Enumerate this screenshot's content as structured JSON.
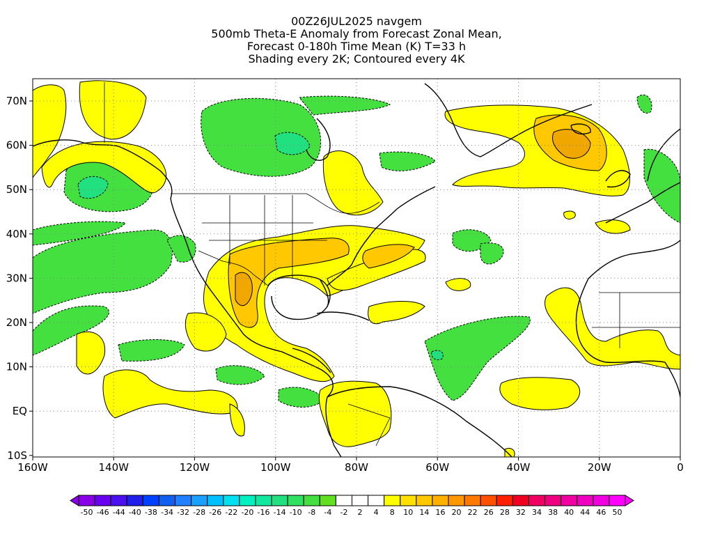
{
  "title": {
    "line1": "00Z26JUL2025 navgem",
    "line2": "500mb Theta-E Anomaly from Forecast Zonal Mean,",
    "line3": "Forecast 0-180h Time Mean (K) T=33 h",
    "line4": "Shading every 2K; Contoured every 4K"
  },
  "axes": {
    "lon_labels": [
      "160W",
      "140W",
      "120W",
      "100W",
      "80W",
      "60W",
      "40W",
      "20W",
      "0"
    ],
    "lat_labels": [
      "70N",
      "60N",
      "50N",
      "40N",
      "30N",
      "20N",
      "10N",
      "EQ",
      "10S"
    ]
  },
  "colorbar": {
    "labels": [
      "-50",
      "-46",
      "-44",
      "-40",
      "-38",
      "-34",
      "-32",
      "-28",
      "-26",
      "-22",
      "-20",
      "-16",
      "-14",
      "-10",
      "-8",
      "-4",
      "-2",
      "2",
      "4",
      "8",
      "10",
      "14",
      "16",
      "20",
      "22",
      "26",
      "28",
      "32",
      "34",
      "38",
      "40",
      "44",
      "46",
      "50"
    ],
    "colors": [
      "#8a00e6",
      "#6a00f0",
      "#4a10f0",
      "#2020e8",
      "#0040ff",
      "#1060f0",
      "#2080ff",
      "#1aa0ff",
      "#00c0ff",
      "#00e0f0",
      "#00f0c0",
      "#10e8a0",
      "#20e080",
      "#30e060",
      "#44e040",
      "#60e020",
      "#ffffff",
      "#ffffff",
      "#ffffff",
      "#ffff00",
      "#ffe000",
      "#ffc800",
      "#ffb000",
      "#ff9800",
      "#ff7800",
      "#ff5000",
      "#ff2000",
      "#f00020",
      "#f00060",
      "#f00080",
      "#f000a0",
      "#f000c0",
      "#f000e0",
      "#ff00ff"
    ]
  },
  "colors": {
    "pos_weak": "#ffff00",
    "pos_mod": "#ffd000",
    "pos_strong": "#f0a800",
    "neg_weak": "#44e040",
    "neg_mod": "#20e080",
    "grid": "#808080"
  },
  "legend_icons": [
    "left-arrow-icon",
    "right-arrow-icon"
  ]
}
